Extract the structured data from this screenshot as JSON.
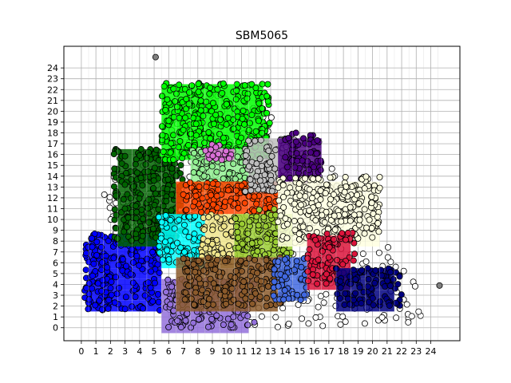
{
  "chart_data": {
    "type": "scatter",
    "title": "SBM5065",
    "xlabel": "",
    "ylabel": "",
    "xlim": [
      -1.2,
      26.0
    ],
    "ylim": [
      -1.2,
      26.0
    ],
    "x_ticks": [
      0,
      1,
      2,
      3,
      4,
      5,
      6,
      7,
      8,
      9,
      10,
      11,
      12,
      13,
      14,
      15,
      16,
      17,
      18,
      19,
      20,
      21,
      22,
      23,
      24
    ],
    "y_ticks": [
      0,
      1,
      2,
      3,
      4,
      5,
      6,
      7,
      8,
      9,
      10,
      11,
      12,
      13,
      14,
      15,
      16,
      17,
      18,
      19,
      20,
      21,
      22,
      23,
      24
    ],
    "grid": true,
    "legend": "none",
    "point_style": {
      "edge_color": "#000000",
      "outline_only_color": "#ffffff"
    },
    "clusters": [
      {
        "color": "#0000ff",
        "x": [
          0.2,
          5.4
        ],
        "y": [
          1.6,
          8.7
        ],
        "cells": 36
      },
      {
        "color": "#006400",
        "x": [
          2.2,
          7.0
        ],
        "y": [
          8.0,
          16.5
        ],
        "cells": 30
      },
      {
        "color": "#00ff00",
        "x": [
          5.5,
          13.0
        ],
        "y": [
          15.5,
          22.6
        ],
        "cells": 48
      },
      {
        "color": "#00ffff",
        "x": [
          5.3,
          8.2
        ],
        "y": [
          6.0,
          10.5
        ],
        "cells": 14
      },
      {
        "color": "#90ee90",
        "x": [
          7.5,
          12.0
        ],
        "y": [
          12.5,
          16.5
        ],
        "cells": 18
      },
      {
        "color": "#da70d6",
        "x": [
          8.5,
          10.5
        ],
        "y": [
          15.5,
          17.0
        ],
        "cells": 4
      },
      {
        "color": "#ff4500",
        "x": [
          7.0,
          13.5
        ],
        "y": [
          10.5,
          13.5
        ],
        "cells": 24
      },
      {
        "color": "#f0e68c",
        "x": [
          8.2,
          11.5
        ],
        "y": [
          6.0,
          10.5
        ],
        "cells": 14
      },
      {
        "color": "#9acd32",
        "x": [
          10.5,
          14.5
        ],
        "y": [
          6.5,
          11.0
        ],
        "cells": 16
      },
      {
        "color": "#bebebe",
        "x": [
          11.2,
          14.6
        ],
        "y": [
          12.5,
          17.5
        ],
        "cells": 16
      },
      {
        "color": "#4b0082",
        "x": [
          14.0,
          16.5
        ],
        "y": [
          13.5,
          18.0
        ],
        "cells": 8
      },
      {
        "color": "#ffffe0",
        "x": [
          13.5,
          20.5
        ],
        "y": [
          8.0,
          14.0
        ],
        "cells": 30
      },
      {
        "color": "#9370db",
        "x": [
          5.8,
          12.0
        ],
        "y": [
          0.0,
          4.5
        ],
        "cells": 28
      },
      {
        "color": "#8b5a2b",
        "x": [
          7.0,
          13.8
        ],
        "y": [
          2.0,
          6.5
        ],
        "cells": 26
      },
      {
        "color": "#4169e1",
        "x": [
          13.2,
          15.5
        ],
        "y": [
          2.5,
          6.5
        ],
        "cells": 10
      },
      {
        "color": "#dc143c",
        "x": [
          15.5,
          18.8
        ],
        "y": [
          4.0,
          8.8
        ],
        "cells": 16
      },
      {
        "color": "#000080",
        "x": [
          17.5,
          22.0
        ],
        "y": [
          2.0,
          5.5
        ],
        "cells": 14
      },
      {
        "color": "#ffffff",
        "x": [
          1.0,
          24.0
        ],
        "y": [
          0.0,
          23.0
        ],
        "cells": 0
      }
    ],
    "outliers": [
      {
        "x": 5.1,
        "y": 25.0,
        "color": "#808080"
      },
      {
        "x": 24.6,
        "y": 3.9,
        "color": "#808080"
      }
    ]
  }
}
